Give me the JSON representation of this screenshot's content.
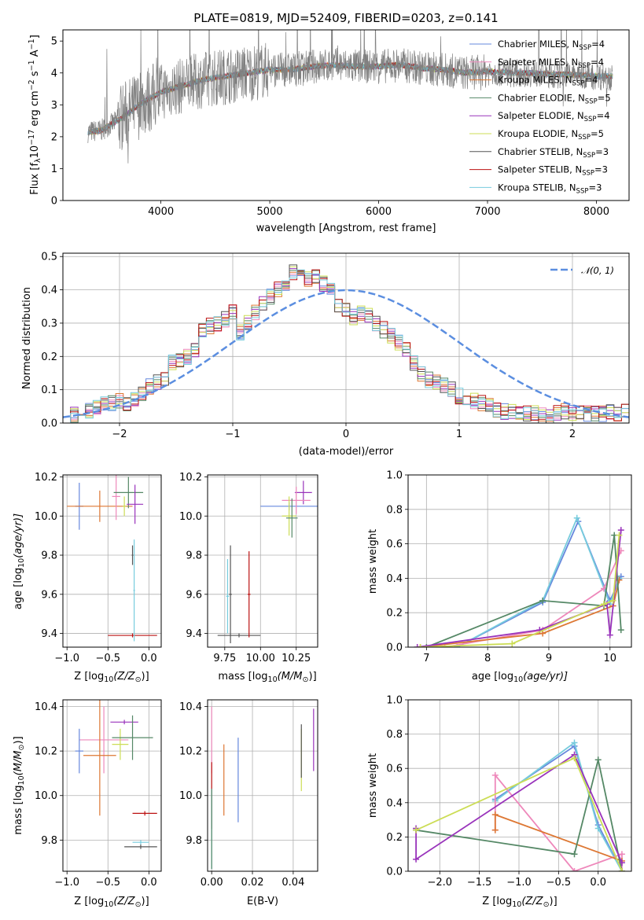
{
  "chart_data": [
    {
      "panel": "spectrum",
      "type": "line",
      "title": "PLATE=0819, MJD=52409, FIBERID=0203, z=0.141",
      "xlabel": "wavelength [Angstrom, rest frame]",
      "ylabel_parts": [
        "Flux [f",
        "λ",
        "10",
        "−17",
        " erg cm",
        "−2",
        " s",
        "−1",
        " A",
        "−1",
        "]"
      ],
      "xlim": [
        3100,
        8300
      ],
      "ylim": [
        0,
        5.35
      ],
      "xticks": [
        4000,
        5000,
        6000,
        7000,
        8000
      ],
      "yticks": [
        0,
        1,
        2,
        3,
        4,
        5
      ],
      "grid": false,
      "legend_position": "upper-right",
      "series": [
        {
          "name": "Chabrier MILES, N",
          "sub": "SSP",
          "suffix": "=4",
          "color": "#6688dd"
        },
        {
          "name": "Salpeter MILES, N",
          "sub": "SSP",
          "suffix": "=4",
          "color": "#ee88bb"
        },
        {
          "name": "Kroupa MILES, N",
          "sub": "SSP",
          "suffix": "=4",
          "color": "#dd7733"
        },
        {
          "name": "Chabrier ELODIE, N",
          "sub": "SSP",
          "suffix": "=5",
          "color": "#558866"
        },
        {
          "name": "Salpeter ELODIE, N",
          "sub": "SSP",
          "suffix": "=4",
          "color": "#9933bb"
        },
        {
          "name": "Kroupa ELODIE, N",
          "sub": "SSP",
          "suffix": "=5",
          "color": "#ccdd55"
        },
        {
          "name": "Chabrier STELIB, N",
          "sub": "SSP",
          "suffix": "=3",
          "color": "#555555"
        },
        {
          "name": "Salpeter STELIB, N",
          "sub": "SSP",
          "suffix": "=3",
          "color": "#bb1111"
        },
        {
          "name": "Kroupa STELIB, N",
          "sub": "SSP",
          "suffix": "=3",
          "color": "#77ccdd"
        }
      ],
      "data_color": "#808080",
      "continuum": {
        "x": [
          3330,
          3450,
          3600,
          3700,
          3800,
          3900,
          4000,
          4200,
          4400,
          4600,
          4800,
          5000,
          5200,
          5400,
          5600,
          5800,
          6000,
          6200,
          6400,
          6600,
          6800,
          7000,
          7200,
          7400,
          7600,
          7800,
          8000,
          8150
        ],
        "y": [
          2.15,
          2.2,
          2.5,
          2.75,
          3.0,
          3.2,
          3.4,
          3.6,
          3.8,
          3.9,
          4.0,
          4.1,
          4.1,
          4.2,
          4.25,
          4.2,
          4.2,
          4.25,
          4.15,
          4.1,
          4.0,
          4.05,
          4.0,
          4.0,
          3.95,
          3.95,
          3.9,
          3.9
        ]
      }
    },
    {
      "panel": "residuals",
      "type": "area",
      "xlabel": "(data-model)/error",
      "ylabel": "Normed distribution",
      "xlim": [
        -2.5,
        2.5
      ],
      "ylim": [
        0,
        0.51
      ],
      "xticks": [
        -2,
        -1,
        0,
        1,
        2
      ],
      "yticks": [
        0.0,
        0.1,
        0.2,
        0.3,
        0.4,
        0.5
      ],
      "grid": true,
      "legend_position": "upper-right",
      "legend_label": "𝒩(0, 1)",
      "gaussian_color": "#5b8ee0",
      "bin_width": 0.1,
      "bin_start": -2.5,
      "base_hist": [
        0.02,
        0.025,
        0.03,
        0.035,
        0.045,
        0.055,
        0.06,
        0.065,
        0.06,
        0.07,
        0.09,
        0.11,
        0.12,
        0.13,
        0.18,
        0.19,
        0.2,
        0.22,
        0.28,
        0.29,
        0.3,
        0.31,
        0.33,
        0.27,
        0.3,
        0.33,
        0.36,
        0.38,
        0.4,
        0.41,
        0.45,
        0.44,
        0.43,
        0.44,
        0.42,
        0.41,
        0.35,
        0.34,
        0.32,
        0.33,
        0.32,
        0.3,
        0.28,
        0.26,
        0.24,
        0.22,
        0.18,
        0.15,
        0.13,
        0.12,
        0.11,
        0.1,
        0.08,
        0.07,
        0.065,
        0.06,
        0.05,
        0.04,
        0.035,
        0.035,
        0.035,
        0.03,
        0.03,
        0.025,
        0.02,
        0.03,
        0.035,
        0.03,
        0.035,
        0.03,
        0.03,
        0.028,
        0.032,
        0.03,
        0.033
      ]
    },
    {
      "panel": "Z-age",
      "type": "scatter",
      "xlabel": "Z [log10(Z/Z⊙)]",
      "xlabel_parts": [
        "Z [log",
        "10",
        "(Z/Z",
        "⊙",
        ")]"
      ],
      "ylabel_parts": [
        "age  [log",
        "10",
        "(age/yr)]"
      ],
      "xlim": [
        -1.05,
        0.15
      ],
      "ylim": [
        9.33,
        10.21
      ],
      "xticks": [
        -1.0,
        -0.5,
        0.0
      ],
      "yticks": [
        9.4,
        9.6,
        9.8,
        10.0,
        10.2
      ],
      "grid": true,
      "points": [
        {
          "x": -0.85,
          "y": 10.05,
          "xerr": 0.05,
          "yerr": 0.12,
          "c": 0
        },
        {
          "x": -0.6,
          "y": 10.05,
          "xerr": 0.4,
          "yerr": 0.08,
          "c": 2
        },
        {
          "x": -0.4,
          "y": 10.1,
          "xerr": 0.05,
          "yerr": 0.12,
          "c": 1
        },
        {
          "x": -0.3,
          "y": 10.05,
          "xerr": 0.02,
          "yerr": 0.05,
          "c": 5
        },
        {
          "x": -0.25,
          "y": 10.12,
          "xerr": 0.18,
          "yerr": 0.08,
          "c": 3
        },
        {
          "x": -0.17,
          "y": 10.06,
          "xerr": 0.1,
          "yerr": 0.1,
          "c": 4
        },
        {
          "x": -0.2,
          "y": 9.39,
          "xerr": 0.3,
          "yerr": 0.01,
          "c": 7
        },
        {
          "x": -0.2,
          "y": 9.8,
          "xerr": 0.01,
          "yerr": 0.05,
          "c": 6
        },
        {
          "x": -0.18,
          "y": 9.62,
          "xerr": 0.01,
          "yerr": 0.26,
          "c": 8
        }
      ]
    },
    {
      "panel": "mass-age",
      "type": "scatter",
      "xlabel_parts": [
        "mass [log",
        "10",
        "(M/M",
        "⊙",
        ")]"
      ],
      "xlim": [
        9.63,
        10.4
      ],
      "ylim": [
        9.33,
        10.21
      ],
      "xticks": [
        9.75,
        10.0,
        10.25
      ],
      "yticks": [
        9.4,
        9.6,
        9.8,
        10.0,
        10.2
      ],
      "grid": true,
      "points": [
        {
          "x": 10.2,
          "y": 10.05,
          "xerr": 0.2,
          "yerr": 0.02,
          "c": 0
        },
        {
          "x": 10.3,
          "y": 10.12,
          "xerr": 0.06,
          "yerr": 0.06,
          "c": 4
        },
        {
          "x": 10.25,
          "y": 10.08,
          "xerr": 0.1,
          "yerr": 0.07,
          "c": 1
        },
        {
          "x": 10.2,
          "y": 10.0,
          "xerr": 0.05,
          "yerr": 0.1,
          "c": 5
        },
        {
          "x": 10.22,
          "y": 9.99,
          "xerr": 0.04,
          "yerr": 0.1,
          "c": 3
        },
        {
          "x": 9.85,
          "y": 9.39,
          "xerr": 0.15,
          "yerr": 0.01,
          "c": 6
        },
        {
          "x": 9.92,
          "y": 9.6,
          "xerr": 0.01,
          "yerr": 0.22,
          "c": 7
        },
        {
          "x": 9.79,
          "y": 9.6,
          "xerr": 0.01,
          "yerr": 0.25,
          "c": 6
        },
        {
          "x": 9.77,
          "y": 9.59,
          "xerr": 0.01,
          "yerr": 0.19,
          "c": 8
        }
      ]
    },
    {
      "panel": "age-weight",
      "type": "line",
      "xlabel_parts": [
        "age  [log",
        "10",
        "(age/yr)]"
      ],
      "ylabel": "mass weight",
      "xlim": [
        6.7,
        10.35
      ],
      "ylim": [
        0,
        1.0
      ],
      "xticks": [
        7,
        8,
        9,
        10
      ],
      "yticks": [
        0.0,
        0.2,
        0.4,
        0.6,
        0.8,
        1.0
      ],
      "grid": true,
      "series": [
        {
          "c": 0,
          "x": [
            7.5,
            8.9,
            9.48,
            10.0,
            10.18
          ],
          "y": [
            0.0,
            0.26,
            0.73,
            0.27,
            0.41
          ]
        },
        {
          "c": 8,
          "x": [
            7.5,
            8.9,
            9.46,
            10.0,
            10.15
          ],
          "y": [
            0.0,
            0.27,
            0.75,
            0.25,
            0.4
          ]
        },
        {
          "c": 1,
          "x": [
            7.3,
            8.9,
            9.9,
            10.18
          ],
          "y": [
            0.0,
            0.1,
            0.34,
            0.56
          ]
        },
        {
          "c": 2,
          "x": [
            6.9,
            8.9,
            10.05,
            10.15
          ],
          "y": [
            0.0,
            0.08,
            0.24,
            0.39
          ]
        },
        {
          "c": 3,
          "x": [
            7.0,
            8.9,
            9.9,
            10.07,
            10.18
          ],
          "y": [
            0.0,
            0.27,
            0.24,
            0.65,
            0.1
          ]
        },
        {
          "c": 4,
          "x": [
            6.85,
            8.85,
            9.95,
            10.0,
            10.18
          ],
          "y": [
            0.0,
            0.1,
            0.25,
            0.07,
            0.68
          ]
        },
        {
          "c": 5,
          "x": [
            6.9,
            8.4,
            9.9,
            10.05,
            10.15
          ],
          "y": [
            0.0,
            0.02,
            0.25,
            0.27,
            0.65
          ]
        }
      ]
    },
    {
      "panel": "Z-mass",
      "type": "scatter",
      "xlabel_parts": [
        "Z [log",
        "10",
        "(Z/Z",
        "⊙",
        ")]"
      ],
      "ylabel_parts": [
        "mass [log",
        "10",
        "(M/M",
        "⊙",
        ")]"
      ],
      "xlim": [
        -1.05,
        0.15
      ],
      "ylim": [
        9.66,
        10.43
      ],
      "xticks": [
        -1.0,
        -0.5,
        0.0
      ],
      "yticks": [
        9.8,
        10.0,
        10.2,
        10.4
      ],
      "grid": true,
      "points": [
        {
          "x": -0.55,
          "y": 10.25,
          "xerr": 0.3,
          "yerr": 0.15,
          "c": 1
        },
        {
          "x": -0.85,
          "y": 10.2,
          "xerr": 0.05,
          "yerr": 0.1,
          "c": 0
        },
        {
          "x": -0.6,
          "y": 10.18,
          "xerr": 0.2,
          "yerr": 0.27,
          "c": 2
        },
        {
          "x": -0.3,
          "y": 10.33,
          "xerr": 0.17,
          "yerr": 0.01,
          "c": 4
        },
        {
          "x": -0.35,
          "y": 10.23,
          "xerr": 0.1,
          "yerr": 0.07,
          "c": 5
        },
        {
          "x": -0.2,
          "y": 10.26,
          "xerr": 0.25,
          "yerr": 0.1,
          "c": 3
        },
        {
          "x": -0.05,
          "y": 9.92,
          "xerr": 0.15,
          "yerr": 0.01,
          "c": 7
        },
        {
          "x": -0.1,
          "y": 9.79,
          "xerr": 0.1,
          "yerr": 0.01,
          "c": 8
        },
        {
          "x": -0.1,
          "y": 9.77,
          "xerr": 0.2,
          "yerr": 0.01,
          "c": 6
        }
      ]
    },
    {
      "panel": "EBV-mass",
      "type": "scatter",
      "xlabel": "E(B-V)",
      "xlim": [
        -0.002,
        0.052
      ],
      "ylim": [
        9.66,
        10.43
      ],
      "xticks": [
        0.0,
        0.02,
        0.04
      ],
      "yticks": [
        9.8,
        10.0,
        10.2,
        10.4
      ],
      "grid": true,
      "points": [
        {
          "x": 0.0,
          "y": 10.25,
          "yerr": 0.15,
          "c": 1
        },
        {
          "x": 0.0,
          "y": 10.0,
          "yerr": 0.15,
          "c": 7
        },
        {
          "x": 0.0,
          "y": 9.85,
          "yerr": 0.18,
          "c": 8
        },
        {
          "x": 0.0,
          "y": 9.85,
          "yerr": 0.18,
          "c": 3
        },
        {
          "x": 0.006,
          "y": 10.07,
          "yerr": 0.16,
          "c": 2
        },
        {
          "x": 0.013,
          "y": 10.07,
          "yerr": 0.19,
          "c": 0
        },
        {
          "x": 0.044,
          "y": 10.16,
          "yerr": 0.14,
          "c": 5
        },
        {
          "x": 0.044,
          "y": 10.2,
          "yerr": 0.12,
          "c": 6
        },
        {
          "x": 0.05,
          "y": 10.25,
          "yerr": 0.14,
          "c": 4
        }
      ]
    },
    {
      "panel": "Z-weight",
      "type": "line",
      "xlabel_parts": [
        "Z [log",
        "10",
        "(Z/Z",
        "⊙",
        ")]"
      ],
      "ylabel": "mass weight",
      "xlim": [
        -2.4,
        0.42
      ],
      "ylim": [
        0,
        1.0
      ],
      "xticks": [
        -2.0,
        -1.5,
        -1.0,
        -0.5,
        0.0
      ],
      "yticks": [
        0.0,
        0.2,
        0.4,
        0.6,
        0.8,
        1.0
      ],
      "grid": true,
      "series": [
        {
          "c": 0,
          "x": [
            -1.3,
            -0.3,
            0.0,
            0.3
          ],
          "y": [
            0.42,
            0.73,
            0.27,
            0.0
          ]
        },
        {
          "c": 8,
          "x": [
            -1.3,
            -0.3,
            0.0,
            0.3
          ],
          "y": [
            0.41,
            0.75,
            0.25,
            0.0
          ]
        },
        {
          "c": 1,
          "x": [
            -1.3,
            -1.3,
            -0.3,
            0.3,
            0.3
          ],
          "y": [
            0.24,
            0.56,
            0.0,
            0.1,
            0.0
          ]
        },
        {
          "c": 2,
          "x": [
            -1.3,
            -1.3,
            0.3
          ],
          "y": [
            0.24,
            0.33,
            0.06
          ]
        },
        {
          "c": 3,
          "x": [
            -2.3,
            -0.3,
            0.0,
            0.3
          ],
          "y": [
            0.24,
            0.1,
            0.65,
            0.0
          ]
        },
        {
          "c": 4,
          "x": [
            -2.3,
            -2.3,
            -0.3,
            0.3
          ],
          "y": [
            0.25,
            0.07,
            0.68,
            0.05
          ]
        },
        {
          "c": 5,
          "x": [
            -2.3,
            -0.3,
            0.3
          ],
          "y": [
            0.24,
            0.66,
            0.0
          ]
        }
      ]
    }
  ]
}
